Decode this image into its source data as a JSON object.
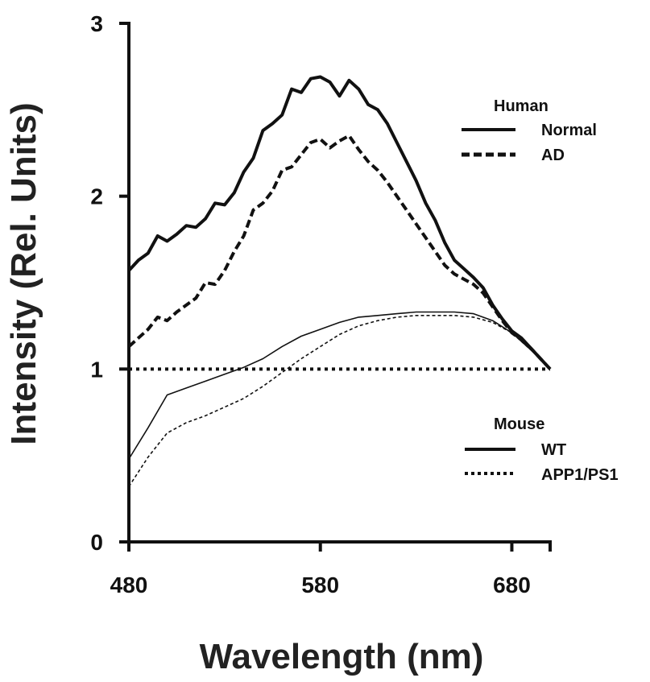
{
  "chart_data": {
    "type": "line",
    "xlabel": "Wavelength (nm)",
    "ylabel": "Intensity (Rel. Units)",
    "xlim": [
      480,
      700
    ],
    "ylim": [
      0,
      3
    ],
    "x_ticks": [
      480,
      580,
      680
    ],
    "y_ticks": [
      0,
      1,
      2,
      3
    ],
    "grid": false,
    "reference_line": {
      "y": 1,
      "style": "dotted"
    },
    "legend_groups": [
      {
        "title": "Human",
        "entries": [
          "Normal",
          "AD"
        ],
        "placement": "top-right"
      },
      {
        "title": "Mouse",
        "entries": [
          "WT",
          "APP1/PS1"
        ],
        "placement": "bottom-right"
      }
    ],
    "series": [
      {
        "name": "Normal",
        "group": "Human",
        "style": "solid",
        "weight": "thick",
        "x": [
          480,
          485,
          490,
          495,
          500,
          505,
          510,
          515,
          520,
          525,
          530,
          535,
          540,
          545,
          550,
          555,
          560,
          565,
          570,
          575,
          580,
          585,
          590,
          595,
          600,
          605,
          610,
          615,
          620,
          625,
          630,
          635,
          640,
          645,
          650,
          655,
          660,
          665,
          670,
          675,
          680,
          685,
          690,
          695,
          700
        ],
        "y": [
          1.57,
          1.63,
          1.67,
          1.77,
          1.74,
          1.78,
          1.83,
          1.82,
          1.87,
          1.96,
          1.95,
          2.02,
          2.14,
          2.22,
          2.38,
          2.42,
          2.47,
          2.62,
          2.6,
          2.68,
          2.69,
          2.66,
          2.58,
          2.67,
          2.62,
          2.53,
          2.5,
          2.42,
          2.31,
          2.2,
          2.09,
          1.96,
          1.86,
          1.73,
          1.63,
          1.58,
          1.53,
          1.47,
          1.37,
          1.29,
          1.22,
          1.18,
          1.12,
          1.06,
          1.0
        ]
      },
      {
        "name": "AD",
        "group": "Human",
        "style": "dashed",
        "weight": "thick",
        "x": [
          480,
          485,
          490,
          495,
          500,
          505,
          510,
          515,
          520,
          525,
          530,
          535,
          540,
          545,
          550,
          555,
          560,
          565,
          570,
          575,
          580,
          585,
          590,
          595,
          600,
          605,
          610,
          615,
          620,
          625,
          630,
          635,
          640,
          645,
          650,
          655,
          660,
          665,
          670,
          675,
          680,
          685,
          690,
          695,
          700
        ],
        "y": [
          1.13,
          1.18,
          1.23,
          1.3,
          1.28,
          1.33,
          1.37,
          1.41,
          1.5,
          1.49,
          1.57,
          1.68,
          1.77,
          1.92,
          1.96,
          2.03,
          2.15,
          2.17,
          2.24,
          2.31,
          2.33,
          2.28,
          2.32,
          2.35,
          2.27,
          2.2,
          2.15,
          2.08,
          2.0,
          1.92,
          1.84,
          1.76,
          1.68,
          1.6,
          1.55,
          1.52,
          1.49,
          1.44,
          1.36,
          1.28,
          1.21,
          1.17,
          1.12,
          1.06,
          1.0
        ]
      },
      {
        "name": "WT",
        "group": "Mouse",
        "style": "solid",
        "weight": "thin",
        "x": [
          480,
          490,
          500,
          510,
          520,
          530,
          540,
          550,
          560,
          570,
          580,
          590,
          600,
          610,
          620,
          630,
          640,
          650,
          660,
          670,
          680,
          690,
          700
        ],
        "y": [
          0.48,
          0.66,
          0.85,
          0.89,
          0.93,
          0.97,
          1.01,
          1.06,
          1.13,
          1.19,
          1.23,
          1.27,
          1.3,
          1.31,
          1.32,
          1.33,
          1.33,
          1.33,
          1.32,
          1.28,
          1.21,
          1.11,
          1.0
        ]
      },
      {
        "name": "APP1/PS1",
        "group": "Mouse",
        "style": "dashed",
        "weight": "thin",
        "x": [
          480,
          490,
          500,
          510,
          520,
          530,
          540,
          550,
          560,
          570,
          580,
          590,
          600,
          610,
          620,
          630,
          640,
          650,
          660,
          670,
          680,
          690,
          700
        ],
        "y": [
          0.32,
          0.49,
          0.63,
          0.69,
          0.73,
          0.78,
          0.83,
          0.9,
          0.98,
          1.06,
          1.13,
          1.2,
          1.25,
          1.28,
          1.3,
          1.31,
          1.31,
          1.31,
          1.3,
          1.27,
          1.21,
          1.11,
          1.0
        ]
      }
    ]
  }
}
